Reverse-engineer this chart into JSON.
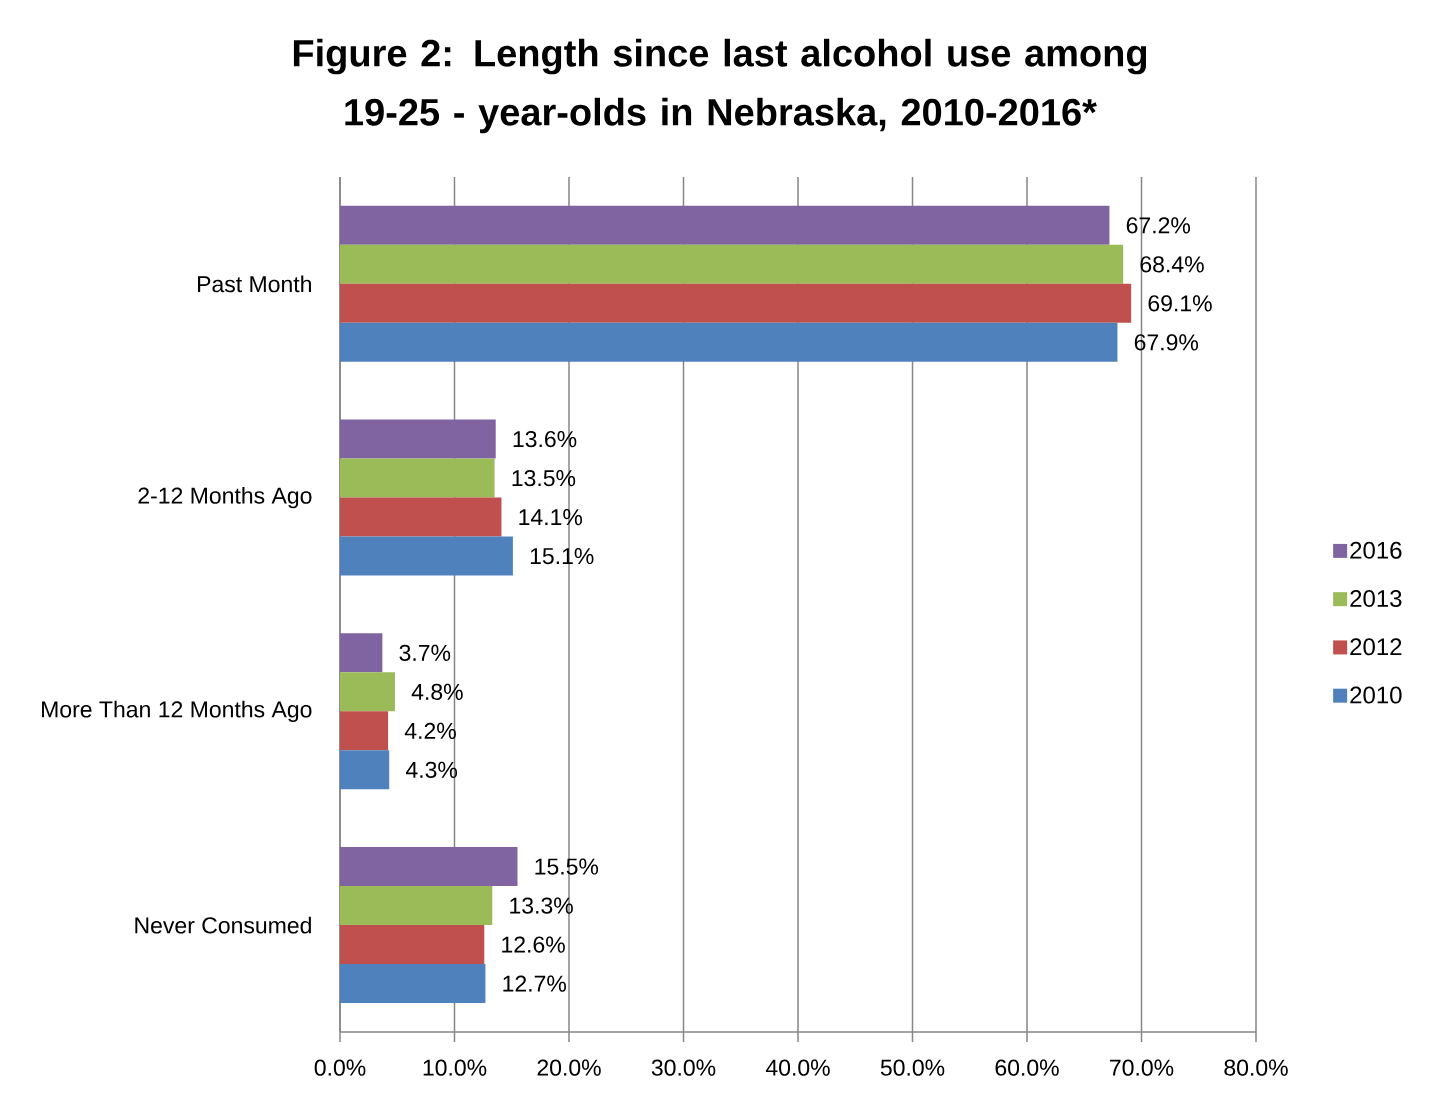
{
  "chart_data": {
    "type": "bar",
    "orientation": "horizontal",
    "title": "Figure 2: Length since last alcohol use among 19-25 - year-olds in Nebraska, 2010-2016*",
    "categories": [
      "Past Month",
      "2-12 Months Ago",
      "More Than 12 Months Ago",
      "Never Consumed"
    ],
    "series": [
      {
        "name": "2016",
        "color": "#8064a2",
        "values": [
          67.2,
          13.6,
          3.7,
          15.5
        ],
        "value_labels": [
          "67.2%",
          "13.6%",
          "3.7%",
          "15.5%"
        ]
      },
      {
        "name": "2013",
        "color": "#9bbb59",
        "values": [
          68.4,
          13.5,
          4.8,
          13.3
        ],
        "value_labels": [
          "68.4%",
          "13.5%",
          "4.8%",
          "13.3%"
        ]
      },
      {
        "name": "2012",
        "color": "#c0504d",
        "values": [
          69.1,
          14.1,
          4.2,
          12.6
        ],
        "value_labels": [
          "69.1%",
          "14.1%",
          "4.2%",
          "12.6%"
        ]
      },
      {
        "name": "2010",
        "color": "#4f81bd",
        "values": [
          67.9,
          15.1,
          4.3,
          12.7
        ],
        "value_labels": [
          "67.9%",
          "15.1%",
          "4.3%",
          "12.7%"
        ]
      }
    ],
    "xlim": [
      0,
      80
    ],
    "xticks": [
      {
        "value": 0,
        "label": "0.0%"
      },
      {
        "value": 10,
        "label": "10.0%"
      },
      {
        "value": 20,
        "label": "20.0%"
      },
      {
        "value": 30,
        "label": "30.0%"
      },
      {
        "value": 40,
        "label": "40.0%"
      },
      {
        "value": 50,
        "label": "50.0%"
      },
      {
        "value": 60,
        "label": "60.0%"
      },
      {
        "value": 70,
        "label": "70.0%"
      },
      {
        "value": 80,
        "label": "80.0%"
      }
    ],
    "grid": "x",
    "legend": "right"
  }
}
